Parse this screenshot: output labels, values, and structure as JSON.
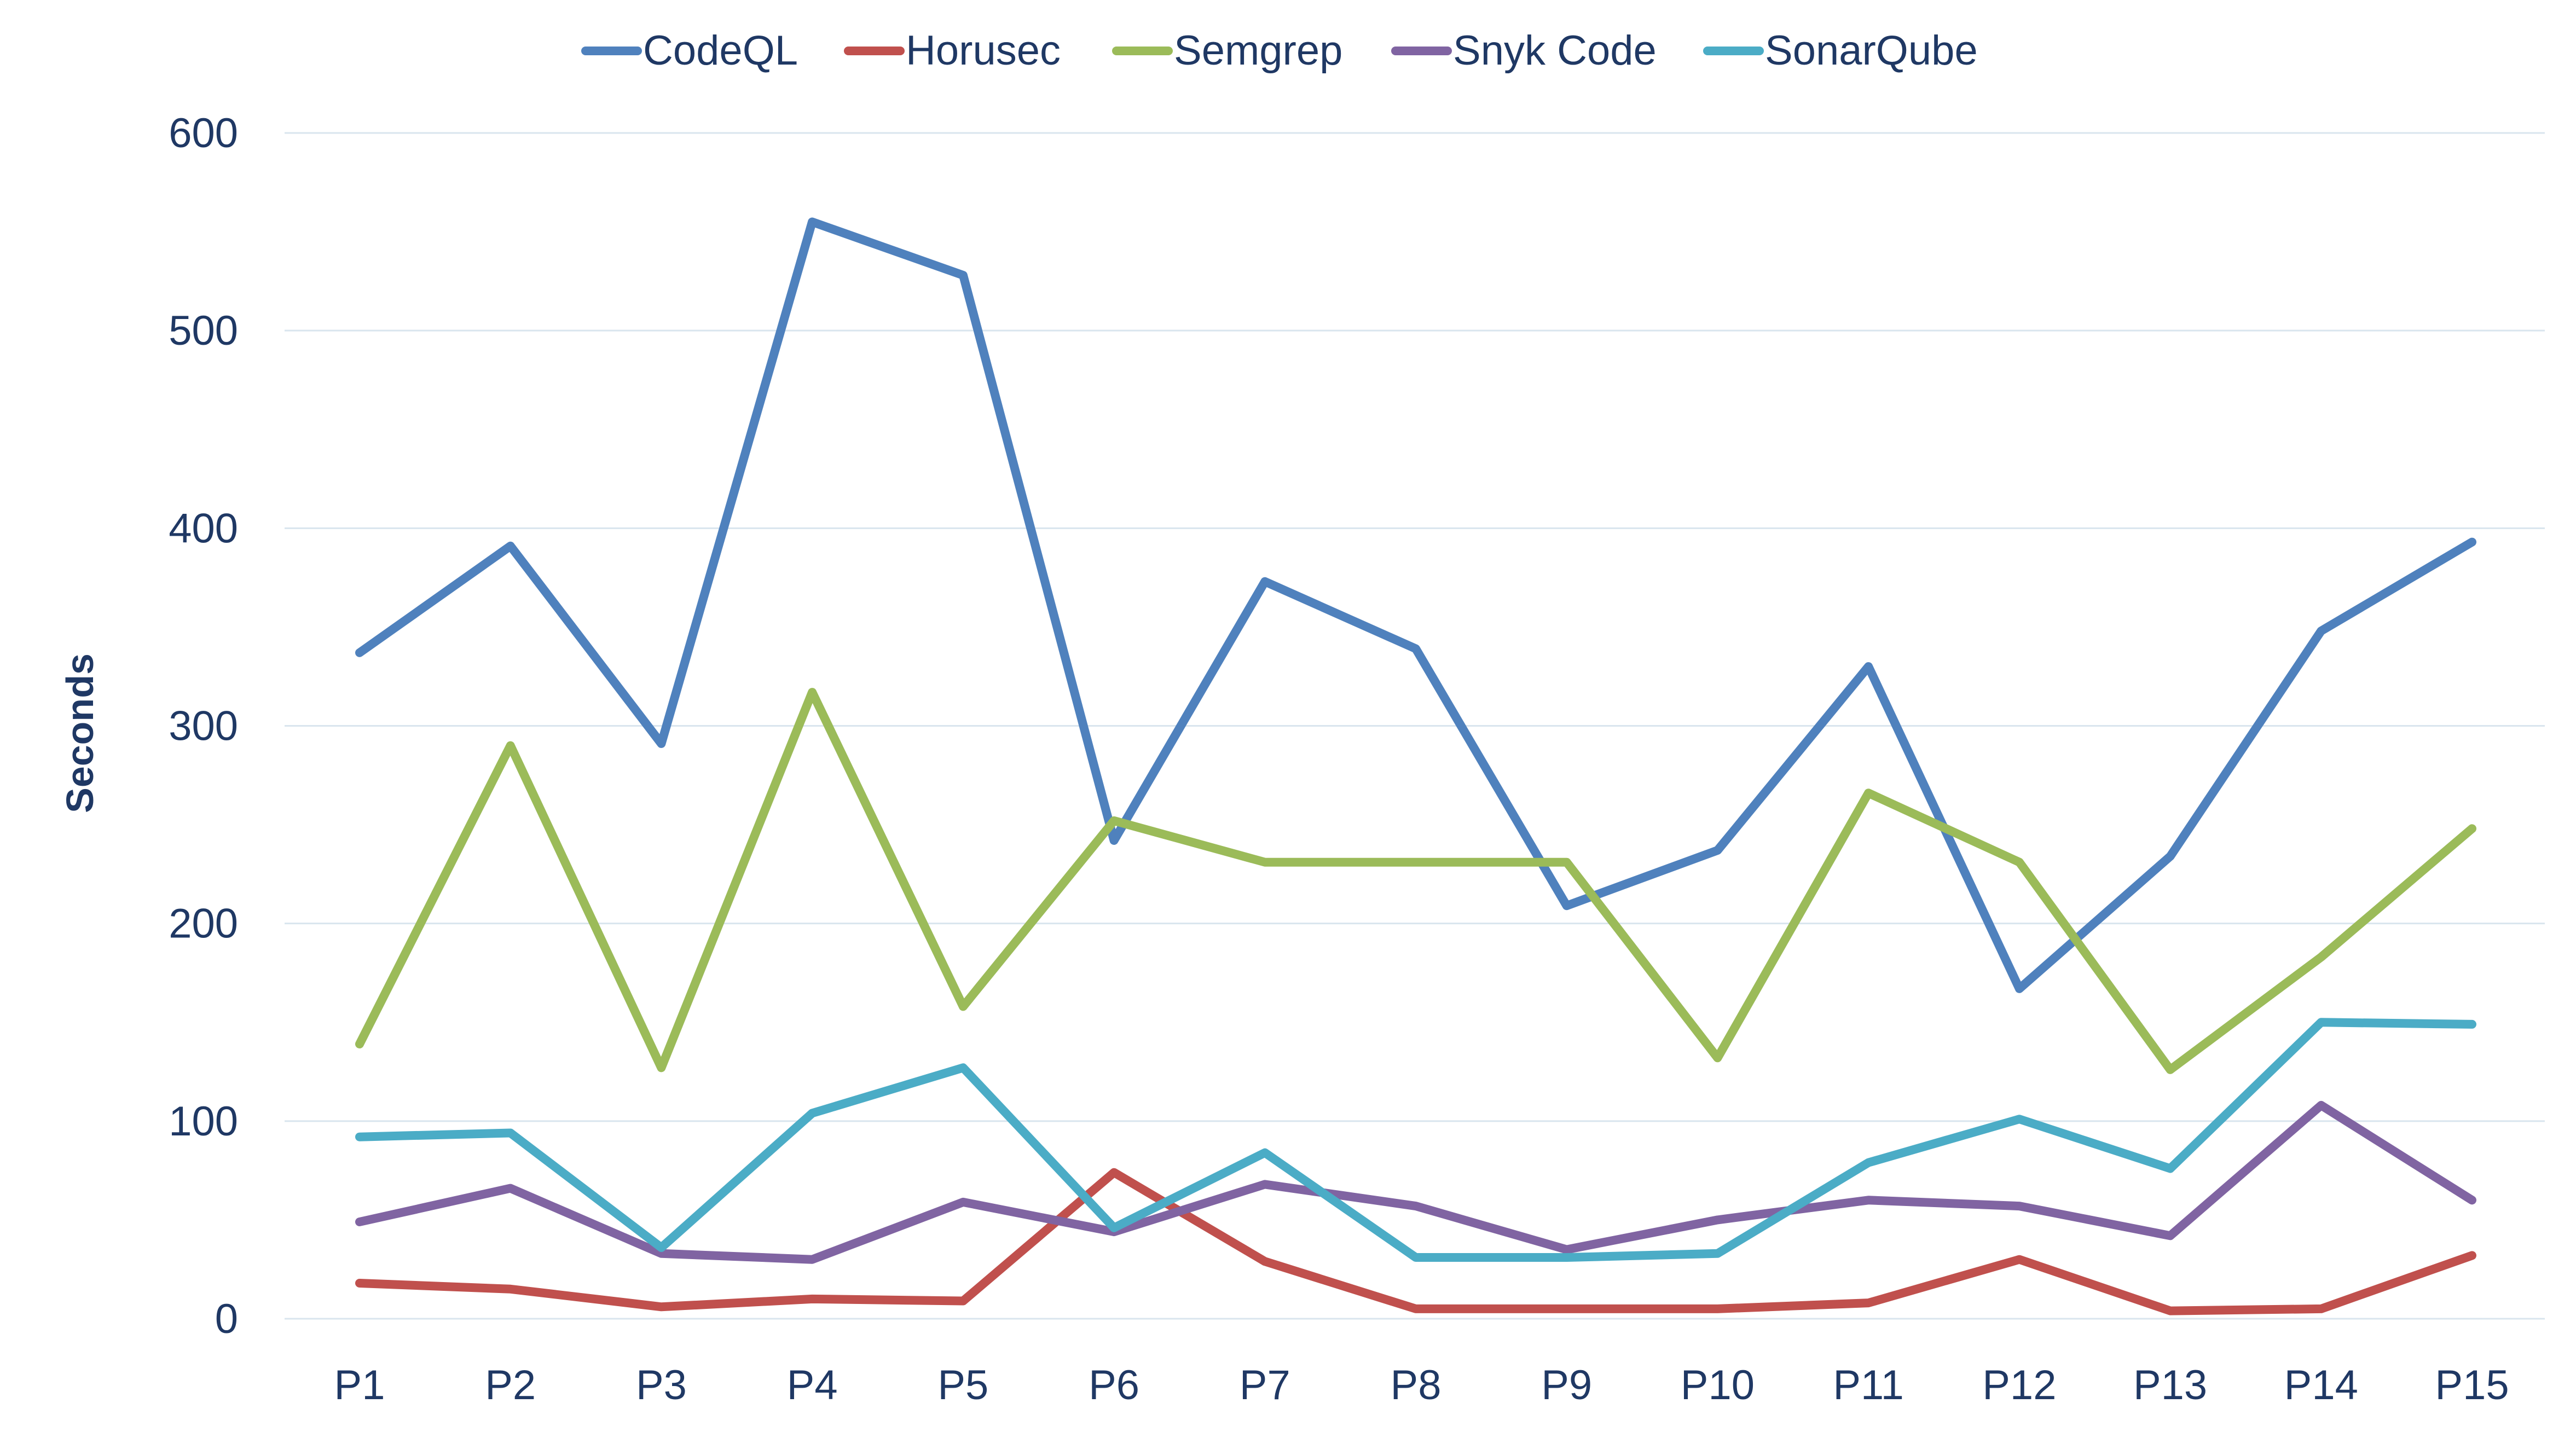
{
  "chart_data": {
    "type": "line",
    "title": "",
    "xlabel": "",
    "ylabel": "Seconds",
    "ylim": [
      0,
      600
    ],
    "yticks": [
      0,
      100,
      200,
      300,
      400,
      500,
      600
    ],
    "grid": true,
    "legend_position": "top-center",
    "categories": [
      "P1",
      "P2",
      "P3",
      "P4",
      "P5",
      "P6",
      "P7",
      "P8",
      "P9",
      "P10",
      "P11",
      "P12",
      "P13",
      "P14",
      "P15"
    ],
    "series": [
      {
        "name": "CodeQL",
        "color": "#4f81bd",
        "values": [
          337,
          391,
          291,
          555,
          528,
          242,
          373,
          339,
          209,
          237,
          330,
          167,
          234,
          348,
          393
        ]
      },
      {
        "name": "Horusec",
        "color": "#c0504d",
        "values": [
          18,
          15,
          6,
          10,
          9,
          74,
          29,
          5,
          5,
          5,
          8,
          30,
          4,
          5,
          32
        ]
      },
      {
        "name": "Semgrep",
        "color": "#9bbb59",
        "values": [
          139,
          290,
          127,
          317,
          158,
          252,
          231,
          231,
          231,
          132,
          266,
          231,
          126,
          183,
          248
        ]
      },
      {
        "name": "Snyk Code",
        "color": "#8064a2",
        "values": [
          49,
          66,
          33,
          30,
          59,
          44,
          68,
          57,
          35,
          50,
          60,
          57,
          42,
          108,
          60
        ]
      },
      {
        "name": "SonarQube",
        "color": "#4bacc6",
        "values": [
          92,
          94,
          36,
          104,
          127,
          46,
          84,
          31,
          31,
          33,
          79,
          101,
          76,
          150,
          149
        ]
      }
    ]
  }
}
